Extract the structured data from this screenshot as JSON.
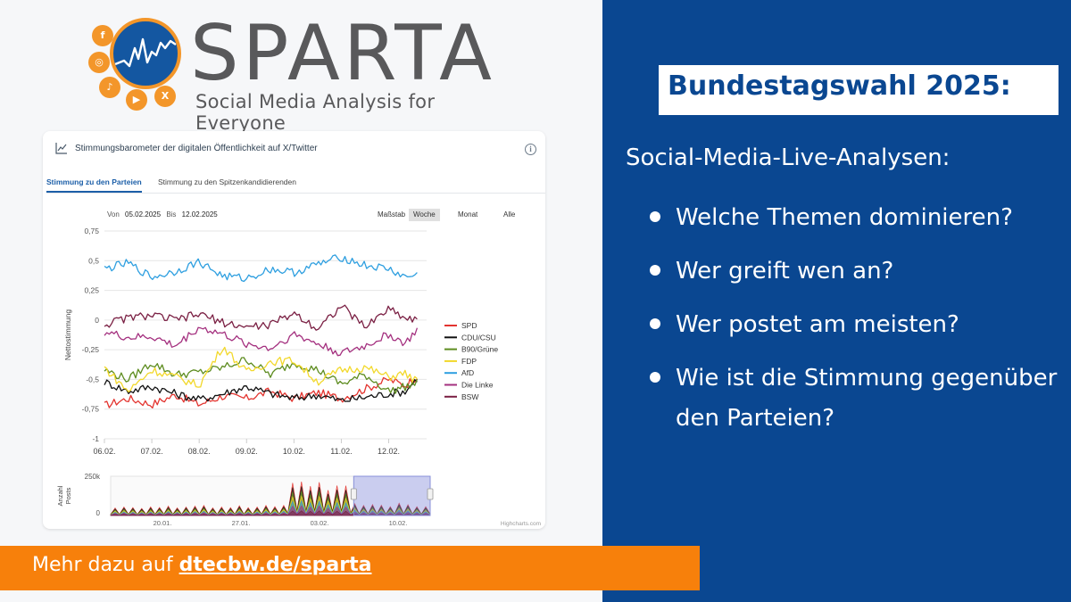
{
  "logo": {
    "wordmark": "SPARTA",
    "tagline": "Social Media Analysis for Everyone",
    "social_icons": [
      "facebook-icon",
      "instagram-icon",
      "tiktok-icon",
      "youtube-icon",
      "x-icon"
    ],
    "accent_color": "#f3962a",
    "circle_color": "#1457a1"
  },
  "dashboard": {
    "title": "Stimmungsbarometer der digitalen Öffentlichkeit auf X/Twitter",
    "tabs": [
      {
        "label": "Stimmung zu den Parteien",
        "active": true
      },
      {
        "label": "Stimmung zu den Spitzenkandidierenden",
        "active": false
      }
    ],
    "range": {
      "from_label": "Von",
      "from_value": "05.02.2025",
      "to_label": "Bis",
      "to_value": "12.02.2025"
    },
    "scale": {
      "label": "Maßstab",
      "options": [
        "Woche",
        "Monat",
        "Alle"
      ],
      "selected": "Woche"
    },
    "credits": "Highcharts.com"
  },
  "chart_data": [
    {
      "type": "line",
      "title": "",
      "ylabel": "Nettostimmung",
      "xlabel": "",
      "ylim": [
        -1,
        0.75
      ],
      "yticks": [
        "0,75",
        "0,5",
        "0,25",
        "0",
        "-0,25",
        "-0,5",
        "-0,75",
        "-1"
      ],
      "x_ticks": [
        "06.02.",
        "07.02.",
        "08.02.",
        "09.02.",
        "10.02.",
        "11.02.",
        "12.02."
      ],
      "x_range": [
        0,
        6.8
      ],
      "legend_position": "right",
      "grid": "horizontal",
      "series": [
        {
          "name": "SPD",
          "color": "#e3342f",
          "x": [
            0,
            0.5,
            1,
            1.5,
            2,
            2.5,
            3,
            3.5,
            4,
            4.5,
            5,
            5.5,
            6,
            6.35,
            6.6
          ],
          "y": [
            -0.72,
            -0.66,
            -0.71,
            -0.63,
            -0.71,
            -0.64,
            -0.66,
            -0.6,
            -0.66,
            -0.61,
            -0.66,
            -0.58,
            -0.5,
            -0.55,
            -0.47
          ]
        },
        {
          "name": "CDU/CSU",
          "color": "#111111",
          "x": [
            0,
            0.5,
            1,
            1.5,
            2,
            2.5,
            3,
            3.5,
            4,
            4.5,
            5,
            5.5,
            6,
            6.35,
            6.6
          ],
          "y": [
            -0.52,
            -0.6,
            -0.56,
            -0.62,
            -0.67,
            -0.62,
            -0.56,
            -0.62,
            -0.66,
            -0.63,
            -0.68,
            -0.65,
            -0.62,
            -0.6,
            -0.49
          ]
        },
        {
          "name": "B90/Grüne",
          "color": "#5d8c1f",
          "x": [
            0,
            0.5,
            1,
            1.5,
            2,
            2.5,
            3,
            3.5,
            4,
            4.5,
            5,
            5.5,
            6,
            6.35,
            6.6
          ],
          "y": [
            -0.42,
            -0.5,
            -0.36,
            -0.46,
            -0.44,
            -0.4,
            -0.33,
            -0.46,
            -0.36,
            -0.42,
            -0.54,
            -0.46,
            -0.6,
            -0.56,
            -0.53
          ]
        },
        {
          "name": "FDP",
          "color": "#f2d82a",
          "x": [
            0,
            0.5,
            1,
            1.5,
            2,
            2.5,
            3,
            3.5,
            4,
            4.5,
            5,
            5.5,
            6,
            6.35,
            6.6
          ],
          "y": [
            -0.4,
            -0.6,
            -0.42,
            -0.48,
            -0.55,
            -0.22,
            -0.44,
            -0.35,
            -0.34,
            -0.52,
            -0.42,
            -0.4,
            -0.48,
            -0.45,
            -0.52
          ]
        },
        {
          "name": "AfD",
          "color": "#2e9fe0",
          "x": [
            0,
            0.5,
            1,
            1.5,
            2,
            2.5,
            3,
            3.5,
            4,
            4.5,
            5,
            5.5,
            6,
            6.35,
            6.6
          ],
          "y": [
            0.43,
            0.48,
            0.36,
            0.41,
            0.49,
            0.37,
            0.35,
            0.43,
            0.4,
            0.47,
            0.53,
            0.46,
            0.43,
            0.36,
            0.38
          ]
        },
        {
          "name": "Die Linke",
          "color": "#a4307f",
          "x": [
            0,
            0.5,
            1,
            1.5,
            2,
            2.5,
            3,
            3.5,
            4,
            4.5,
            5,
            5.5,
            6,
            6.35,
            6.6
          ],
          "y": [
            -0.1,
            -0.15,
            -0.14,
            -0.22,
            -0.06,
            -0.12,
            -0.2,
            -0.24,
            -0.12,
            -0.2,
            -0.28,
            -0.22,
            -0.12,
            -0.2,
            -0.08
          ]
        },
        {
          "name": "BSW",
          "color": "#7a1f43",
          "x": [
            0,
            0.5,
            1,
            1.5,
            2,
            2.5,
            3,
            3.5,
            4,
            4.5,
            5,
            5.5,
            6,
            6.35,
            6.6
          ],
          "y": [
            -0.04,
            0.02,
            0.04,
            0.0,
            0.05,
            -0.02,
            -0.06,
            -0.04,
            0.06,
            -0.07,
            0.12,
            -0.06,
            0.1,
            0.02,
            0.0
          ]
        }
      ]
    },
    {
      "type": "area",
      "title": "",
      "ylabel": "Anzahl Posts",
      "yticks": [
        "250k",
        "0"
      ],
      "ylim": [
        0,
        250000
      ],
      "x_ticks": [
        "20.01.",
        "27.01.",
        "03.02.",
        "10.02."
      ],
      "selected_window": [
        "05.02.",
        "12.02."
      ]
    }
  ]
}
